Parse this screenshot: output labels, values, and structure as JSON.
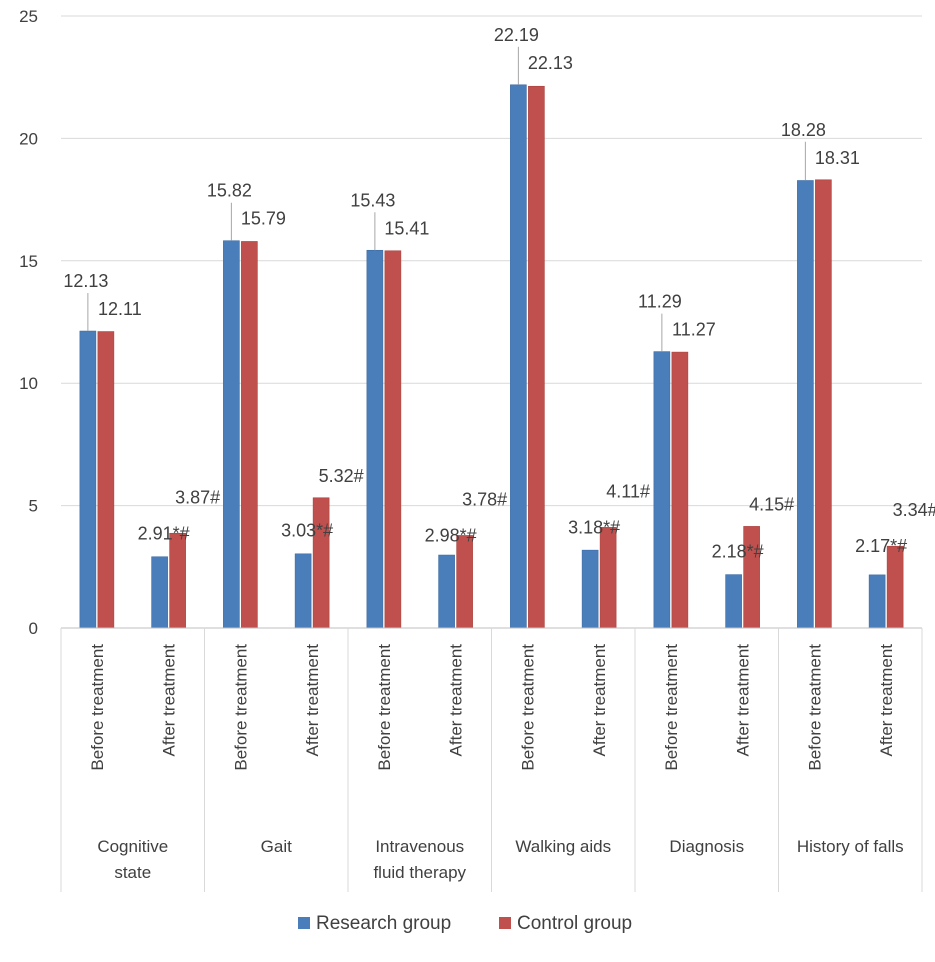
{
  "chart_data": {
    "type": "bar",
    "title": "",
    "xlabel": "",
    "ylabel": "",
    "ylim": [
      0,
      25
    ],
    "yticks": [
      0,
      5,
      10,
      15,
      20,
      25
    ],
    "grid": true,
    "legend_position": "bottom",
    "groups": [
      {
        "name": "Cognitive state",
        "lines": [
          "Cognitive",
          "state"
        ]
      },
      {
        "name": "Gait",
        "lines": [
          "Gait"
        ]
      },
      {
        "name": "Intravenous fluid therapy",
        "lines": [
          "Intravenous",
          "fluid therapy"
        ]
      },
      {
        "name": "Walking aids",
        "lines": [
          "Walking aids"
        ]
      },
      {
        "name": "Diagnosis",
        "lines": [
          "Diagnosis"
        ]
      },
      {
        "name": "History of falls",
        "lines": [
          "History of falls"
        ]
      }
    ],
    "subcategories": [
      "Before treatment",
      "After treatment"
    ],
    "categories": [
      "Cognitive state - Before treatment",
      "Cognitive state - After treatment",
      "Gait - Before treatment",
      "Gait - After treatment",
      "Intravenous fluid therapy - Before treatment",
      "Intravenous fluid therapy - After treatment",
      "Walking aids - Before treatment",
      "Walking aids - After treatment",
      "Diagnosis - Before treatment",
      "Diagnosis - After treatment",
      "History of falls - Before treatment",
      "History of falls - After treatment"
    ],
    "series": [
      {
        "name": "Research group",
        "color": "#4a7ebb",
        "values": [
          12.13,
          2.91,
          15.82,
          3.03,
          15.43,
          2.98,
          22.19,
          3.18,
          11.29,
          2.18,
          18.28,
          2.17
        ],
        "labels": [
          "12.13",
          "2.91*#",
          "15.82",
          "3.03*#",
          "15.43",
          "2.98*#",
          "22.19",
          "3.18*#",
          "11.29",
          "2.18*#",
          "18.28",
          "2.17*#"
        ]
      },
      {
        "name": "Control group",
        "color": "#c0504d",
        "values": [
          12.11,
          3.87,
          15.79,
          5.32,
          15.41,
          3.78,
          22.13,
          4.11,
          11.27,
          4.15,
          18.31,
          3.34
        ],
        "labels": [
          "12.11",
          "3.87#",
          "15.79",
          "5.32#",
          "15.41",
          "3.78#",
          "22.13",
          "4.11#",
          "11.27",
          "4.15#",
          "18.31",
          "3.34#"
        ]
      }
    ]
  }
}
